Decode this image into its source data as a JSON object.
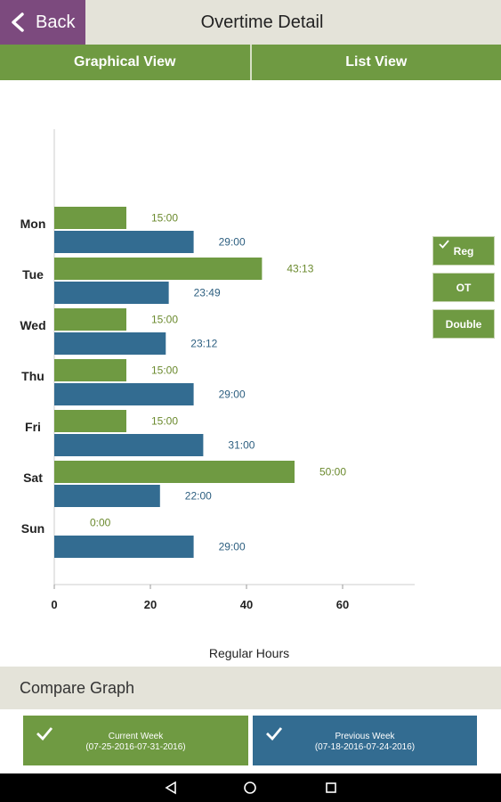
{
  "header": {
    "back_label": "Back",
    "title": "Overtime Detail"
  },
  "tabs": [
    {
      "label": "Graphical View"
    },
    {
      "label": "List View"
    }
  ],
  "colors": {
    "green": "#6f9a42",
    "blue": "#336c91",
    "purple": "#7c4a7e",
    "header_bg": "#e4e3d9",
    "green_text": "#6b8a2e",
    "blue_text": "#2d5f80"
  },
  "chart_data": {
    "type": "bar",
    "orientation": "horizontal",
    "categories": [
      "Mon",
      "Tue",
      "Wed",
      "Thu",
      "Fri",
      "Sat",
      "Sun"
    ],
    "series": [
      {
        "values": [
          15,
          43.22,
          15,
          15,
          15,
          50,
          0
        ],
        "labels": [
          "15:00",
          "43:13",
          "15:00",
          "15:00",
          "15:00",
          "50:00",
          "0:00"
        ]
      },
      {
        "values": [
          29,
          23.82,
          23.2,
          29,
          31,
          22,
          29
        ],
        "labels": [
          "29:00",
          "23:49",
          "23:12",
          "29:00",
          "31:00",
          "22:00",
          "29:00"
        ]
      }
    ],
    "xticks": [
      0,
      20,
      40,
      60
    ],
    "xlim": [
      0,
      75
    ],
    "xlabel": "Regular Hours"
  },
  "legend": [
    {
      "label": "Reg",
      "checked": true
    },
    {
      "label": "OT",
      "checked": false
    },
    {
      "label": "Double",
      "checked": false
    }
  ],
  "compare": {
    "title": "Compare Graph",
    "current": {
      "label": "Current Week",
      "range": "(07-25-2016-07-31-2016)"
    },
    "previous": {
      "label": "Previous Week",
      "range": "(07-18-2016-07-24-2016)"
    }
  },
  "navbar": [
    {
      "icon": "back-triangle-icon"
    },
    {
      "icon": "home-circle-icon"
    },
    {
      "icon": "recents-square-icon"
    }
  ]
}
